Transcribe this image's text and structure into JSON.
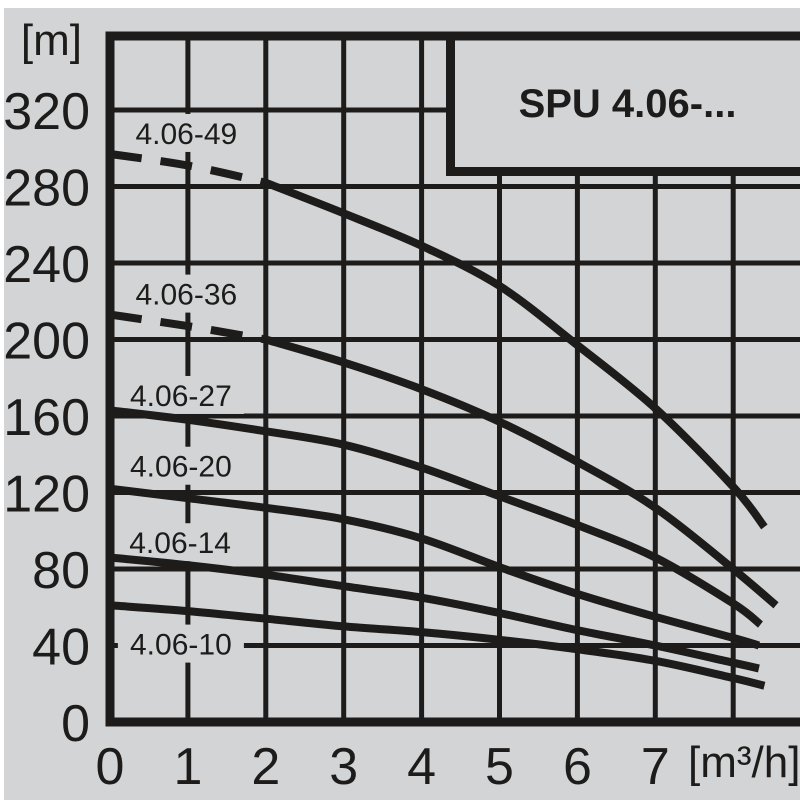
{
  "page": {
    "background": "#ffffff"
  },
  "panel": {
    "background": "#d2d4d6",
    "line_color": "#1d1c1a",
    "text_color": "#1d1c1a"
  },
  "title_box": {
    "label": "SPU 4.06-..."
  },
  "chart_data": {
    "type": "line",
    "title": "SPU 4.06-...",
    "grid": true,
    "legend_position": "inline-labels",
    "x_axis": {
      "unit": "[m³/h]",
      "ticks": [
        0,
        1,
        2,
        3,
        4,
        5,
        6,
        7
      ],
      "visible_range": [
        0,
        8.86
      ],
      "gridline_step": 1
    },
    "y_axis": {
      "unit": "[m]",
      "ticks": [
        320,
        280,
        240,
        200,
        160,
        120,
        80,
        40,
        0
      ],
      "visible_range": [
        0,
        358
      ],
      "gridline_step": 40
    },
    "series": [
      {
        "label": "4.06-49",
        "dashed_until_q": 2,
        "points": [
          [
            0,
            297
          ],
          [
            1,
            291
          ],
          [
            2,
            282
          ],
          [
            3,
            266
          ],
          [
            4,
            249
          ],
          [
            5,
            228
          ],
          [
            6,
            197
          ],
          [
            7,
            164
          ],
          [
            8,
            123
          ],
          [
            8.4,
            102
          ]
        ],
        "label_anchor": {
          "q": 0.98,
          "head": 308
        }
      },
      {
        "label": "4.06-36",
        "dashed_until_q": 2,
        "points": [
          [
            0,
            213
          ],
          [
            1,
            207
          ],
          [
            2,
            200
          ],
          [
            3,
            188
          ],
          [
            4,
            174
          ],
          [
            5,
            157
          ],
          [
            6,
            136
          ],
          [
            7,
            112
          ],
          [
            8,
            80
          ],
          [
            8.55,
            61
          ]
        ],
        "label_anchor": {
          "q": 0.98,
          "head": 224
        }
      },
      {
        "label": "4.06-27",
        "dashed_until_q": null,
        "points": [
          [
            0,
            163
          ],
          [
            1,
            158
          ],
          [
            2,
            152
          ],
          [
            3,
            145
          ],
          [
            4,
            133
          ],
          [
            5,
            118
          ],
          [
            6,
            103
          ],
          [
            7,
            86
          ],
          [
            8,
            62
          ],
          [
            8.35,
            51
          ]
        ],
        "label_anchor": {
          "q": 0.91,
          "head": 171
        }
      },
      {
        "label": "4.06-20",
        "dashed_until_q": null,
        "points": [
          [
            0,
            122
          ],
          [
            1,
            117
          ],
          [
            2,
            112
          ],
          [
            3,
            106
          ],
          [
            4,
            96
          ],
          [
            5,
            81
          ],
          [
            6,
            67
          ],
          [
            7,
            55
          ],
          [
            8,
            44
          ],
          [
            8.33,
            40
          ]
        ],
        "label_anchor": {
          "q": 0.91,
          "head": 134
        }
      },
      {
        "label": "4.06-14",
        "dashed_until_q": null,
        "points": [
          [
            0,
            86
          ],
          [
            1,
            82
          ],
          [
            2,
            77
          ],
          [
            3,
            71
          ],
          [
            4,
            65
          ],
          [
            5,
            57
          ],
          [
            6,
            48
          ],
          [
            7,
            40
          ],
          [
            8,
            31
          ],
          [
            8.33,
            28
          ]
        ],
        "label_anchor": {
          "q": 0.9,
          "head": 94
        }
      },
      {
        "label": "4.06-10",
        "dashed_until_q": null,
        "points": [
          [
            0,
            61
          ],
          [
            1,
            58
          ],
          [
            2,
            54
          ],
          [
            3,
            50
          ],
          [
            4,
            47
          ],
          [
            5,
            43
          ],
          [
            6,
            38
          ],
          [
            7,
            32
          ],
          [
            8,
            23
          ],
          [
            8.4,
            19
          ]
        ],
        "label_anchor": {
          "q": 0.91,
          "head": 41
        }
      }
    ]
  }
}
